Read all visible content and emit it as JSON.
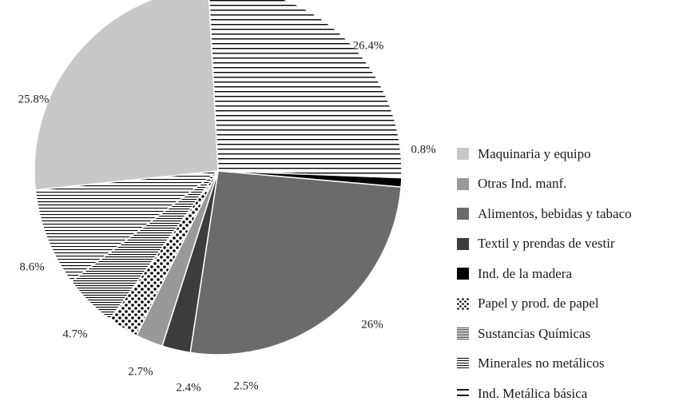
{
  "chart_data": {
    "type": "pie",
    "slices": [
      {
        "label": "Ind. Metálica básica",
        "value": 26.4,
        "value_label": "26.4%",
        "pattern": "hlines-wide"
      },
      {
        "label": "Ind. de la madera",
        "value": 0.8,
        "value_label": "0.8%",
        "pattern": "solid-black"
      },
      {
        "label": "Alimentos, bebidas y tabaco",
        "value": 26.0,
        "value_label": "26%",
        "pattern": "solid-dark-gray"
      },
      {
        "label": "Textil y prendas de vestir",
        "value": 2.5,
        "value_label": "2.5%",
        "pattern": "solid-darker-gray"
      },
      {
        "label": "Otras Ind. manf.",
        "value": 2.4,
        "value_label": "2.4%",
        "pattern": "solid-mid-gray"
      },
      {
        "label": "Papel y prod. de papel",
        "value": 2.7,
        "value_label": "2.7%",
        "pattern": "dots"
      },
      {
        "label": "Sustancias Químicas",
        "value": 4.7,
        "value_label": "4.7%",
        "pattern": "hlines-dense"
      },
      {
        "label": "Minerales no metálicos",
        "value": 8.6,
        "value_label": "8.6%",
        "pattern": "hlines-medium"
      },
      {
        "label": "Maquinaria y equipo",
        "value": 25.8,
        "value_label": "25.8%",
        "pattern": "solid-light-gray"
      }
    ],
    "legend_position": "right",
    "legend_order": [
      "Maquinaria y equipo",
      "Otras Ind. manf.",
      "Alimentos, bebidas y tabaco",
      "Textil y prendas de vestir",
      "Ind. de la madera",
      "Papel y prod. de papel",
      "Sustancias Químicas",
      "Minerales no metálicos",
      "Ind. Metálica básica"
    ],
    "colors": {
      "solid-light-gray": "#c8c8c8",
      "solid-mid-gray": "#999999",
      "solid-dark-gray": "#6b6b6b",
      "solid-darker-gray": "#3c3c3c",
      "solid-black": "#000000"
    }
  }
}
